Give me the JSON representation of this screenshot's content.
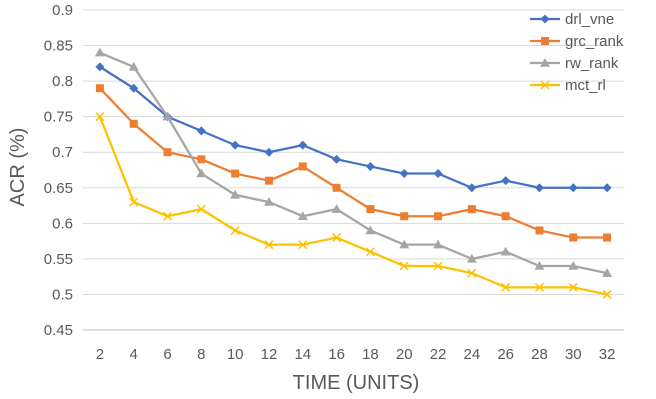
{
  "chart_data": {
    "type": "line",
    "xlabel": "TIME (UNITS)",
    "ylabel": "ACR (%)",
    "ylim": [
      0.45,
      0.9
    ],
    "y_ticks": [
      0.45,
      0.5,
      0.55,
      0.6,
      0.65,
      0.7,
      0.75,
      0.8,
      0.85,
      0.9
    ],
    "x": [
      2,
      4,
      6,
      8,
      10,
      12,
      14,
      16,
      18,
      20,
      22,
      24,
      26,
      28,
      30,
      32
    ],
    "grid": true,
    "legend_position": "top-right",
    "series": [
      {
        "name": "drl_vne",
        "color": "#4472C4",
        "marker": "diamond",
        "values": [
          0.82,
          0.79,
          0.75,
          0.73,
          0.71,
          0.7,
          0.71,
          0.69,
          0.68,
          0.67,
          0.67,
          0.65,
          0.66,
          0.65,
          0.65,
          0.65
        ]
      },
      {
        "name": "grc_rank",
        "color": "#ED7D31",
        "marker": "square",
        "values": [
          0.79,
          0.74,
          0.7,
          0.69,
          0.67,
          0.66,
          0.68,
          0.65,
          0.62,
          0.61,
          0.61,
          0.62,
          0.61,
          0.59,
          0.58,
          0.58
        ]
      },
      {
        "name": "rw_rank",
        "color": "#A5A5A5",
        "marker": "triangle",
        "values": [
          0.84,
          0.82,
          0.75,
          0.67,
          0.64,
          0.63,
          0.61,
          0.62,
          0.59,
          0.57,
          0.57,
          0.55,
          0.56,
          0.54,
          0.54,
          0.53
        ]
      },
      {
        "name": "mct_rl",
        "color": "#FFC000",
        "marker": "x",
        "values": [
          0.75,
          0.63,
          0.61,
          0.62,
          0.59,
          0.57,
          0.57,
          0.58,
          0.56,
          0.54,
          0.54,
          0.53,
          0.51,
          0.51,
          0.51,
          0.5
        ]
      }
    ]
  }
}
